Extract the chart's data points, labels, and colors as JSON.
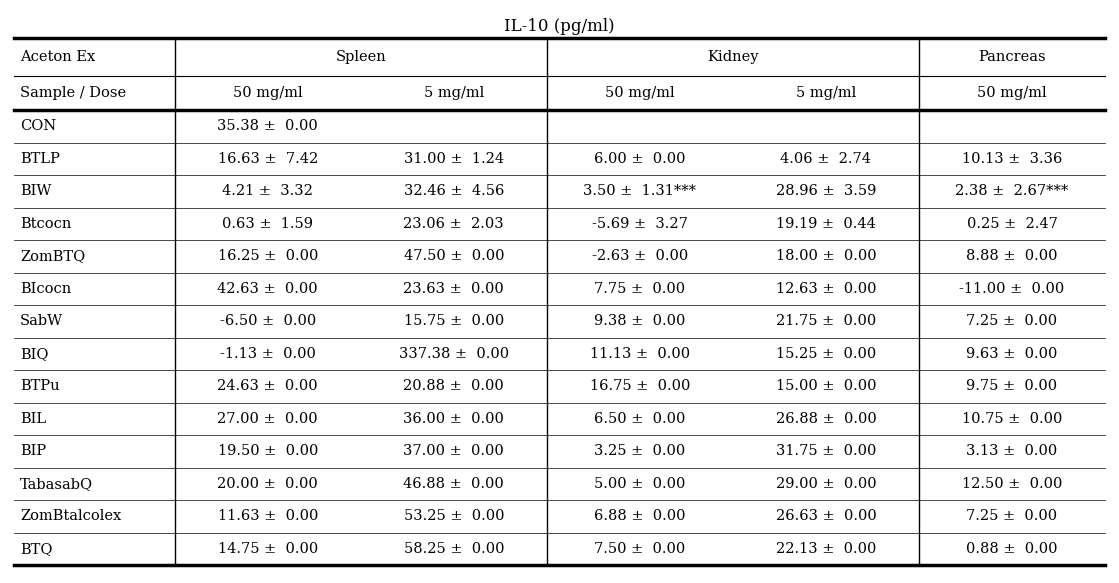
{
  "title": "IL-10 (pg/ml)",
  "header1_labels": [
    "Aceton Ex",
    "Spleen",
    "Kidney",
    "Pancreas"
  ],
  "header2": [
    "Sample / Dose",
    "50 mg/ml",
    "5 mg/ml",
    "50 mg/ml",
    "5 mg/ml",
    "50 mg/ml"
  ],
  "rows": [
    [
      "CON",
      "35.38 ±  0.00",
      "",
      "",
      "",
      ""
    ],
    [
      "BTLP",
      "16.63 ±  7.42",
      "31.00 ±  1.24",
      "6.00 ±  0.00",
      "4.06 ±  2.74",
      "10.13 ±  3.36"
    ],
    [
      "BIW",
      "4.21 ±  3.32",
      "32.46 ±  4.56",
      "3.50 ±  1.31***",
      "28.96 ±  3.59",
      "2.38 ±  2.67***"
    ],
    [
      "Btcocn",
      "0.63 ±  1.59",
      "23.06 ±  2.03",
      "-5.69 ±  3.27",
      "19.19 ±  0.44",
      "0.25 ±  2.47"
    ],
    [
      "ZomBTQ",
      "16.25 ±  0.00",
      "47.50 ±  0.00",
      "-2.63 ±  0.00",
      "18.00 ±  0.00",
      "8.88 ±  0.00"
    ],
    [
      "BIcocn",
      "42.63 ±  0.00",
      "23.63 ±  0.00",
      "7.75 ±  0.00",
      "12.63 ±  0.00",
      "-11.00 ±  0.00"
    ],
    [
      "SabW",
      "-6.50 ±  0.00",
      "15.75 ±  0.00",
      "9.38 ±  0.00",
      "21.75 ±  0.00",
      "7.25 ±  0.00"
    ],
    [
      "BIQ",
      "-1.13 ±  0.00",
      "337.38 ±  0.00",
      "11.13 ±  0.00",
      "15.25 ±  0.00",
      "9.63 ±  0.00"
    ],
    [
      "BTPu",
      "24.63 ±  0.00",
      "20.88 ±  0.00",
      "16.75 ±  0.00",
      "15.00 ±  0.00",
      "9.75 ±  0.00"
    ],
    [
      "BIL",
      "27.00 ±  0.00",
      "36.00 ±  0.00",
      "6.50 ±  0.00",
      "26.88 ±  0.00",
      "10.75 ±  0.00"
    ],
    [
      "BIP",
      "19.50 ±  0.00",
      "37.00 ±  0.00",
      "3.25 ±  0.00",
      "31.75 ±  0.00",
      "3.13 ±  0.00"
    ],
    [
      "TabasabQ",
      "20.00 ±  0.00",
      "46.88 ±  0.00",
      "5.00 ±  0.00",
      "29.00 ±  0.00",
      "12.50 ±  0.00"
    ],
    [
      "ZomBtalcolex",
      "11.63 ±  0.00",
      "53.25 ±  0.00",
      "6.88 ±  0.00",
      "26.63 ±  0.00",
      "7.25 ±  0.00"
    ],
    [
      "BTQ",
      "14.75 ±  0.00",
      "58.25 ±  0.00",
      "7.50 ±  0.00",
      "22.13 ±  0.00",
      "0.88 ±  0.00"
    ]
  ],
  "font_family": "DejaVu Serif",
  "title_fontsize": 12,
  "header_fontsize": 10.5,
  "cell_fontsize": 10.5,
  "bg_color": "white",
  "text_color": "black",
  "thick_lw": 2.5,
  "thin_lw": 0.8,
  "sep_lw": 1.0
}
